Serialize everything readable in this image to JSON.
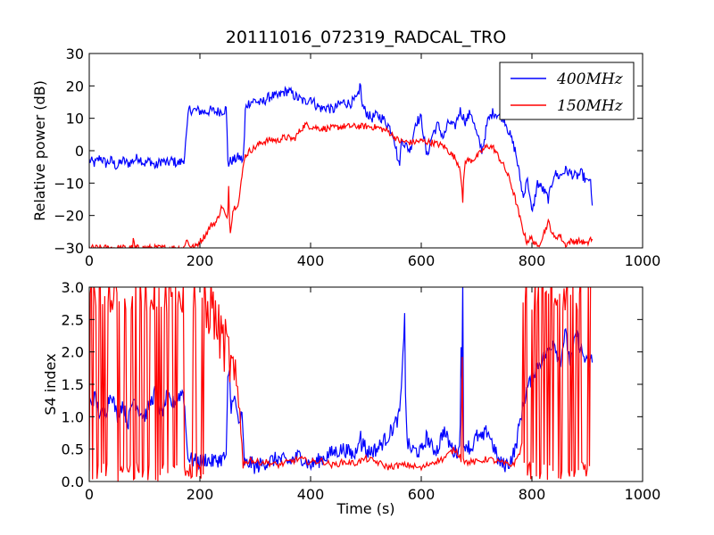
{
  "chart_data": [
    {
      "type": "line",
      "title": "20111016_072319_RADCAL_TRO",
      "xlabel": "",
      "ylabel": "Relative power (dB)",
      "xlim": [
        0,
        1000
      ],
      "ylim": [
        -30,
        30
      ],
      "xticks": [
        "0",
        "200",
        "400",
        "600",
        "800",
        "1000"
      ],
      "yticks": [
        "−30",
        "−20",
        "−10",
        "0",
        "10",
        "20",
        "30"
      ],
      "legend_position": "top-right",
      "series": [
        {
          "name": "400MHz",
          "color": "#0000ff",
          "x": [
            0,
            10,
            20,
            30,
            40,
            50,
            60,
            70,
            80,
            90,
            100,
            110,
            120,
            130,
            140,
            150,
            160,
            170,
            172,
            174,
            176,
            180,
            190,
            200,
            210,
            220,
            230,
            240,
            248,
            250,
            252,
            256,
            260,
            270,
            278,
            280,
            282,
            284,
            290,
            300,
            310,
            320,
            330,
            340,
            350,
            360,
            370,
            380,
            390,
            400,
            410,
            420,
            430,
            440,
            450,
            460,
            470,
            480,
            488,
            490,
            492,
            496,
            500,
            510,
            520,
            530,
            540,
            550,
            555,
            560,
            565,
            570,
            580,
            590,
            600,
            610,
            620,
            630,
            640,
            650,
            660,
            670,
            680,
            690,
            700,
            710,
            720,
            730,
            740,
            750,
            760,
            770,
            775,
            780,
            785,
            790,
            795,
            800,
            810,
            820,
            830,
            840,
            850,
            860,
            870,
            880,
            890,
            900,
            905,
            910
          ],
          "y": [
            -3,
            -4,
            -2,
            -4,
            -3,
            -5,
            -3,
            -4,
            -3,
            -2,
            -4,
            -3,
            -5,
            -3,
            -4,
            -3,
            -4,
            -3,
            -2,
            2,
            5,
            12.8,
            12.5,
            12.2,
            12,
            12.4,
            12,
            12.3,
            12.8,
            -2,
            -4,
            -3,
            -3,
            -2,
            -3,
            2,
            12,
            14,
            15,
            15.5,
            14.5,
            16,
            17,
            16.5,
            18,
            18.5,
            17,
            16,
            15,
            16.5,
            14,
            13,
            13.5,
            12.5,
            14,
            15,
            14.5,
            15.5,
            17,
            23.5,
            15,
            13,
            12,
            10,
            11,
            10,
            8,
            5,
            0,
            -5,
            4,
            2,
            0,
            9,
            10,
            -2,
            5,
            8,
            4,
            9,
            7,
            12.5,
            9,
            12,
            5,
            0,
            9,
            12,
            11,
            10,
            5,
            0,
            -5,
            -10,
            -15,
            -8,
            -12,
            -20,
            -10,
            -12,
            -15,
            -7,
            -8,
            -6,
            -7,
            -8,
            -7,
            -10,
            -8,
            -20
          ],
          "noise": 1.6
        },
        {
          "name": "150MHz",
          "color": "#ff0000",
          "x": [
            0,
            50,
            78,
            80,
            82,
            100,
            160,
            172,
            175,
            180,
            190,
            200,
            210,
            220,
            230,
            240,
            250,
            252,
            254,
            260,
            270,
            276,
            280,
            290,
            300,
            310,
            320,
            330,
            340,
            350,
            360,
            370,
            380,
            390,
            400,
            420,
            440,
            460,
            480,
            500,
            520,
            540,
            560,
            580,
            600,
            620,
            640,
            660,
            670,
            673,
            675,
            677,
            680,
            690,
            700,
            710,
            720,
            730,
            740,
            750,
            760,
            770,
            780,
            790,
            800,
            810,
            820,
            830,
            840,
            850,
            860,
            870,
            880,
            890,
            900,
            905,
            910
          ],
          "y": [
            -30,
            -30,
            -30,
            -27,
            -30,
            -30,
            -30,
            -30,
            -27,
            -29,
            -30,
            -28,
            -26,
            -23,
            -22,
            -17,
            -22,
            -10,
            -26,
            -18,
            -16,
            -8,
            -2,
            0,
            1,
            2.5,
            3,
            3.5,
            3,
            4,
            4,
            3.5,
            6,
            8,
            7.5,
            6.8,
            7,
            7.5,
            7.5,
            7.5,
            7.2,
            6,
            3,
            2.5,
            3,
            2.5,
            1.5,
            -2,
            -5,
            -10,
            -17,
            -7,
            -3,
            -3,
            -2,
            0,
            1.5,
            1,
            -2,
            -5,
            -9,
            -15,
            -22,
            -28,
            -27,
            -30,
            -26,
            -22,
            -27,
            -26,
            -29,
            -28,
            -28,
            -28,
            -29,
            -27,
            -28
          ],
          "noise": 1.0
        }
      ]
    },
    {
      "type": "line",
      "title": "",
      "xlabel": "Time (s)",
      "ylabel": "S4 index",
      "xlim": [
        0,
        1000
      ],
      "ylim": [
        0,
        3
      ],
      "xticks": [
        "0",
        "200",
        "400",
        "600",
        "800",
        "1000"
      ],
      "yticks": [
        "0.0",
        "0.5",
        "1.0",
        "1.5",
        "2.0",
        "2.5",
        "3.0"
      ],
      "series": [
        {
          "name": "400MHz",
          "color": "#0000ff",
          "x": [
            0,
            10,
            20,
            30,
            40,
            50,
            60,
            70,
            80,
            90,
            100,
            110,
            120,
            130,
            140,
            150,
            160,
            170,
            172,
            176,
            180,
            190,
            200,
            210,
            220,
            230,
            240,
            248,
            250,
            254,
            256,
            260,
            270,
            276,
            280,
            284,
            290,
            300,
            320,
            340,
            360,
            380,
            400,
            420,
            440,
            460,
            480,
            490,
            492,
            495,
            500,
            520,
            540,
            560,
            565,
            570,
            572,
            575,
            580,
            600,
            610,
            620,
            630,
            640,
            650,
            660,
            670,
            673,
            674,
            675,
            676,
            677,
            680,
            690,
            700,
            710,
            720,
            730,
            740,
            750,
            760,
            770,
            780,
            790,
            800,
            810,
            820,
            830,
            840,
            850,
            860,
            870,
            880,
            890,
            900,
            910
          ],
          "y": [
            1.2,
            1.3,
            1.0,
            1.1,
            1.4,
            1.0,
            1.2,
            0.9,
            1.3,
            1.1,
            1.0,
            1.2,
            1.4,
            1.0,
            1.3,
            1.2,
            1.3,
            1.4,
            1.2,
            0.6,
            0.35,
            0.32,
            0.3,
            0.35,
            0.3,
            0.33,
            0.35,
            0.4,
            1.5,
            1.7,
            1.0,
            1.4,
            0.9,
            1.0,
            0.3,
            0.25,
            0.3,
            0.22,
            0.3,
            0.35,
            0.3,
            0.4,
            0.25,
            0.35,
            0.45,
            0.5,
            0.4,
            0.8,
            0.4,
            0.7,
            0.45,
            0.5,
            0.7,
            1.0,
            1.5,
            2.65,
            1.0,
            0.6,
            0.5,
            0.45,
            0.7,
            0.5,
            0.5,
            0.8,
            0.6,
            0.45,
            0.5,
            3.0,
            0.4,
            3.0,
            0.4,
            0.5,
            0.6,
            0.5,
            0.7,
            0.65,
            0.8,
            0.55,
            0.3,
            0.25,
            0.3,
            0.5,
            1.0,
            1.4,
            1.6,
            1.8,
            1.9,
            2.0,
            2.2,
            1.8,
            2.3,
            1.8,
            2.3,
            2.0,
            1.8,
            1.9
          ],
          "noise": 0.12
        },
        {
          "name": "150MHz",
          "color": "#ff0000",
          "x": [
            0,
            20,
            40,
            60,
            80,
            100,
            120,
            140,
            160,
            180,
            190,
            200,
            210,
            212,
            220,
            230,
            240,
            250,
            255,
            260,
            270,
            276,
            280,
            284,
            290,
            300,
            320,
            340,
            360,
            380,
            400,
            420,
            440,
            460,
            480,
            500,
            520,
            540,
            560,
            580,
            600,
            620,
            640,
            660,
            670,
            673,
            674,
            675,
            676,
            677,
            680,
            690,
            700,
            720,
            740,
            760,
            770,
            780,
            790,
            800,
            810,
            820,
            830,
            840,
            850,
            860,
            870,
            880,
            890,
            900,
            910
          ],
          "y": [
            1.0,
            1.0,
            1.0,
            1.0,
            1.0,
            1.0,
            1.0,
            1.0,
            1.0,
            1.0,
            1.0,
            1.0,
            1.0,
            2.5,
            2.8,
            2.4,
            2.2,
            2.0,
            1.8,
            1.6,
            1.2,
            0.8,
            0.3,
            0.28,
            0.35,
            0.3,
            0.3,
            0.25,
            0.3,
            0.35,
            0.3,
            0.32,
            0.25,
            0.3,
            0.28,
            0.35,
            0.3,
            0.22,
            0.25,
            0.25,
            0.2,
            0.3,
            0.35,
            0.5,
            0.4,
            0.3,
            1.95,
            0.5,
            0.4,
            0.3,
            0.3,
            0.3,
            0.3,
            0.35,
            0.3,
            0.25,
            0.3,
            0.5,
            1.0,
            1.5,
            1.5,
            1.5,
            1.5,
            1.5,
            1.5,
            1.5,
            1.5,
            1.5,
            1.5,
            1.5,
            1.5
          ],
          "noise": 0.05,
          "spikes": true
        }
      ]
    }
  ]
}
